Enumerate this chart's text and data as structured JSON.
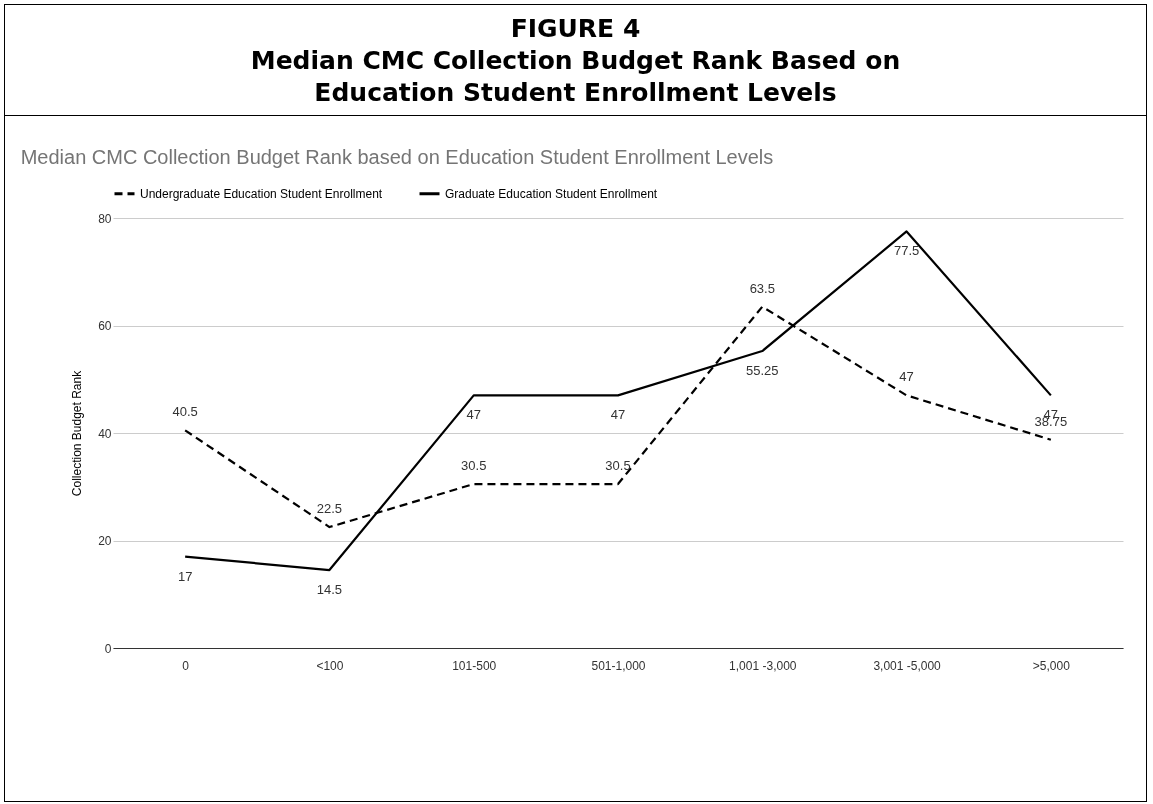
{
  "chart_data": {
    "type": "line",
    "title": "FIGURE 4",
    "subtitle": "Median CMC Collection Budget Rank Based on Education Student Enrollment Levels",
    "annotations": [
      "Median CMC Collection Budget Rank based on Education Student Enrollment Levels"
    ],
    "ylabel": "Collection Budget Rank",
    "categories": [
      "0",
      "<100",
      "101-500",
      "501-1,000",
      "1,001 -3,000",
      "3,001 -5,000",
      ">5,000"
    ],
    "series": [
      {
        "name": "Undergraduate Education Student Enrollment",
        "color": "#000000",
        "line_style": "dashed",
        "values": [
          40.5,
          22.5,
          30.5,
          30.5,
          63.5,
          47,
          38.75
        ]
      },
      {
        "name": "Graduate Education Student Enrollment",
        "color": "#000000",
        "line_style": "solid",
        "values": [
          17,
          14.5,
          47,
          47,
          55.25,
          77.5,
          47
        ]
      }
    ],
    "ylim": [
      0,
      80
    ],
    "yticks": [
      0,
      20,
      40,
      60,
      80
    ],
    "grid": "y",
    "legend": "top",
    "marker": "none",
    "data_labels": true
  }
}
